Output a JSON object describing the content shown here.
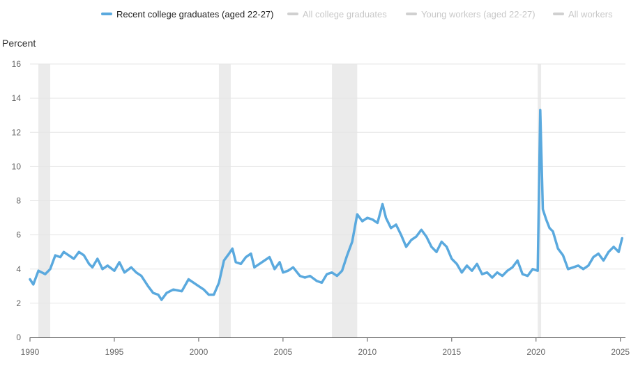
{
  "legend": [
    {
      "label": "Recent college graduates (aged 22-27)",
      "color": "#5aa9de",
      "active": true
    },
    {
      "label": "All college graduates",
      "color": "#d0d0d0",
      "active": false
    },
    {
      "label": "Young workers (aged 22-27)",
      "color": "#d0d0d0",
      "active": false
    },
    {
      "label": "All workers",
      "color": "#d0d0d0",
      "active": false
    }
  ],
  "chart_data": {
    "type": "line",
    "ylabel": "Percent",
    "ylim": [
      0,
      16
    ],
    "xlim": [
      1990,
      2025.3
    ],
    "yticks": [
      0,
      2,
      4,
      6,
      8,
      10,
      12,
      14,
      16
    ],
    "xticks": [
      1990,
      1995,
      2000,
      2005,
      2010,
      2015,
      2020,
      2025
    ],
    "grid": true,
    "recessions": [
      [
        1990.5,
        1991.2
      ],
      [
        2001.2,
        2001.9
      ],
      [
        2007.9,
        2009.4
      ],
      [
        2020.1,
        2020.3
      ]
    ],
    "series": [
      {
        "name": "Recent college graduates (aged 22-27)",
        "color": "#5aa9de",
        "x": [
          1990.0,
          1990.2,
          1990.5,
          1990.9,
          1991.2,
          1991.5,
          1991.8,
          1992.0,
          1992.3,
          1992.6,
          1992.9,
          1993.2,
          1993.5,
          1993.7,
          1994.0,
          1994.3,
          1994.6,
          1995.0,
          1995.3,
          1995.6,
          1996.0,
          1996.3,
          1996.6,
          1997.0,
          1997.3,
          1997.6,
          1997.8,
          1998.1,
          1998.5,
          1999.0,
          1999.4,
          1999.7,
          2000.0,
          2000.3,
          2000.6,
          2000.9,
          2001.2,
          2001.5,
          2001.8,
          2002.0,
          2002.2,
          2002.5,
          2002.8,
          2003.1,
          2003.3,
          2003.6,
          2003.9,
          2004.2,
          2004.5,
          2004.8,
          2005.0,
          2005.3,
          2005.6,
          2006.0,
          2006.3,
          2006.6,
          2007.0,
          2007.3,
          2007.6,
          2007.9,
          2008.2,
          2008.5,
          2008.8,
          2009.1,
          2009.4,
          2009.7,
          2010.0,
          2010.3,
          2010.6,
          2010.9,
          2011.1,
          2011.4,
          2011.7,
          2012.0,
          2012.3,
          2012.6,
          2012.9,
          2013.2,
          2013.5,
          2013.8,
          2014.1,
          2014.4,
          2014.7,
          2015.0,
          2015.3,
          2015.6,
          2015.9,
          2016.2,
          2016.5,
          2016.8,
          2017.1,
          2017.4,
          2017.7,
          2018.0,
          2018.3,
          2018.6,
          2018.9,
          2019.2,
          2019.5,
          2019.8,
          2020.1,
          2020.25,
          2020.4,
          2020.6,
          2020.8,
          2021.0,
          2021.3,
          2021.6,
          2021.9,
          2022.2,
          2022.5,
          2022.8,
          2023.1,
          2023.4,
          2023.7,
          2024.0,
          2024.3,
          2024.6,
          2024.9,
          2025.1
        ],
        "values": [
          3.4,
          3.1,
          3.9,
          3.7,
          4.0,
          4.8,
          4.7,
          5.0,
          4.8,
          4.6,
          5.0,
          4.8,
          4.3,
          4.1,
          4.6,
          4.0,
          4.2,
          3.9,
          4.4,
          3.8,
          4.1,
          3.8,
          3.6,
          3.0,
          2.6,
          2.5,
          2.2,
          2.6,
          2.8,
          2.7,
          3.4,
          3.2,
          3.0,
          2.8,
          2.5,
          2.5,
          3.2,
          4.5,
          4.9,
          5.2,
          4.4,
          4.3,
          4.7,
          4.9,
          4.1,
          4.3,
          4.5,
          4.7,
          4.0,
          4.4,
          3.8,
          3.9,
          4.1,
          3.6,
          3.5,
          3.6,
          3.3,
          3.2,
          3.7,
          3.8,
          3.6,
          3.9,
          4.8,
          5.6,
          7.2,
          6.8,
          7.0,
          6.9,
          6.7,
          7.8,
          7.0,
          6.4,
          6.6,
          6.0,
          5.3,
          5.7,
          5.9,
          6.3,
          5.9,
          5.3,
          5.0,
          5.6,
          5.3,
          4.6,
          4.3,
          3.8,
          4.2,
          3.9,
          4.3,
          3.7,
          3.8,
          3.5,
          3.8,
          3.6,
          3.9,
          4.1,
          4.5,
          3.7,
          3.6,
          4.0,
          3.9,
          13.3,
          7.5,
          6.9,
          6.4,
          6.2,
          5.2,
          4.8,
          4.0,
          4.1,
          4.2,
          4.0,
          4.2,
          4.7,
          4.9,
          4.5,
          5.0,
          5.3,
          5.0,
          5.8
        ]
      }
    ]
  }
}
